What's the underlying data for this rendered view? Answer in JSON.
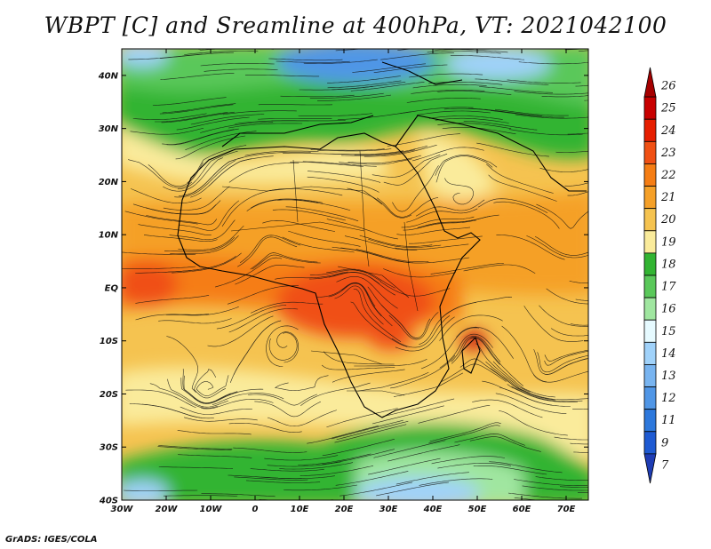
{
  "title": "WBPT [C] and Sreamline at 400hPa, VT: 2021042100",
  "credit": "GrADS: IGES/COLA",
  "map": {
    "lon_range": [
      -30,
      75
    ],
    "lat_range": [
      -40,
      45
    ],
    "lat_labels": [
      "40N",
      "30N",
      "20N",
      "10N",
      "EQ",
      "10S",
      "20S",
      "30S",
      "40S"
    ],
    "lat_values": [
      40,
      30,
      20,
      10,
      0,
      -10,
      -20,
      -30,
      -40
    ],
    "lon_labels": [
      "30W",
      "20W",
      "10W",
      "0",
      "10E",
      "20E",
      "30E",
      "40E",
      "50E",
      "60E",
      "70E"
    ],
    "lon_values": [
      -30,
      -20,
      -10,
      0,
      10,
      20,
      30,
      40,
      50,
      60,
      70
    ]
  },
  "colorbar": {
    "labels": [
      "26",
      "25",
      "24",
      "23",
      "22",
      "21",
      "20",
      "19",
      "18",
      "17",
      "16",
      "15",
      "14",
      "13",
      "12",
      "11",
      "9",
      "7"
    ],
    "colors": [
      "#a50000",
      "#c80000",
      "#e61e00",
      "#f05014",
      "#f57d14",
      "#f5a028",
      "#f5c350",
      "#faeb9b",
      "#32b432",
      "#5ac85a",
      "#a0e6a0",
      "#e6faff",
      "#a0d2fa",
      "#78b4f0",
      "#5096e6",
      "#2d78dc",
      "#1e5ad2",
      "#1e3cb4"
    ]
  }
}
